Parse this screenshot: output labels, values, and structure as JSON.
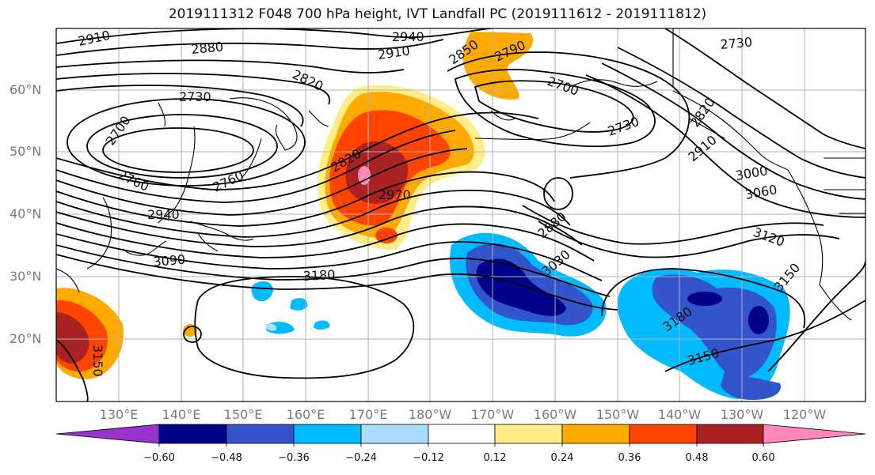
{
  "title": "2019111312 F048 700 hPa height, IVT Landfall PC (2019111612 - 2019111812)",
  "lat_labels": [
    "60°N",
    "50°N",
    "40°N",
    "30°N",
    "20°N"
  ],
  "lon_labels": [
    "130°E",
    "140°E",
    "150°E",
    "160°E",
    "170°E",
    "180°W",
    "170°W",
    "160°W",
    "150°W",
    "140°W",
    "130°W",
    "120°W"
  ],
  "contour_labels": [
    "2910",
    "2880",
    "2940",
    "2910",
    "2850",
    "2790",
    "2730",
    "2820",
    "2730",
    "2700",
    "2700",
    "2730",
    "2820",
    "2910",
    "3000",
    "3060",
    "3120",
    "3150",
    "2760",
    "2760",
    "2940",
    "2970",
    "2820",
    "3090",
    "2880",
    "3030",
    "3180",
    "3180",
    "3150",
    "3150"
  ],
  "colorbar": {
    "ticks": [
      "−0.60",
      "−0.48",
      "−0.36",
      "−0.24",
      "−0.12",
      "0.12",
      "0.24",
      "0.36",
      "0.48",
      "0.60"
    ],
    "colors": [
      "#9933cc",
      "#000088",
      "#3355cc",
      "#00bbff",
      "#aaddff",
      "#ffffff",
      "#ffee88",
      "#ffaa00",
      "#ff4400",
      "#aa2222",
      "#ff88bb"
    ]
  }
}
